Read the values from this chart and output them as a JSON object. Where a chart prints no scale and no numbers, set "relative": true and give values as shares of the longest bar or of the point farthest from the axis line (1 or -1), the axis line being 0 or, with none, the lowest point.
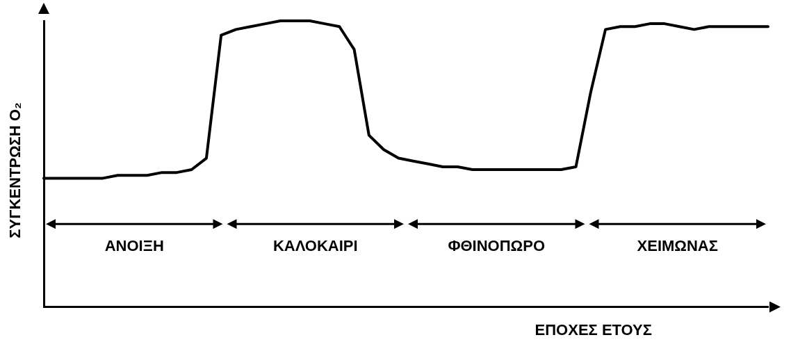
{
  "chart_data": {
    "type": "line",
    "relative": true,
    "xlabel": "ΕΠΟΧΕΣ ΕΤΟΥΣ",
    "ylabel": "ΣΥΓΚΕΝΤΡΩΣΗ O₂",
    "grid": false,
    "legend": false,
    "marker": "none",
    "line_style": "solid",
    "categories": [
      null,
      null,
      null,
      null,
      null,
      null,
      null,
      null,
      null,
      null,
      null,
      null,
      null,
      null,
      null,
      null,
      null,
      null,
      null,
      null,
      null,
      null,
      null,
      null,
      null,
      null,
      null,
      null,
      null,
      null,
      null,
      null,
      null,
      null,
      null,
      null,
      null,
      null,
      null,
      null,
      null,
      null,
      null,
      null,
      null,
      null,
      null,
      null,
      null,
      null
    ],
    "series": [
      {
        "color": "#000000",
        "values": [
          0.45,
          0.45,
          0.45,
          0.45,
          0.45,
          0.46,
          0.46,
          0.46,
          0.47,
          0.47,
          0.48,
          0.52,
          0.95,
          0.97,
          0.98,
          0.99,
          1.0,
          1.0,
          1.0,
          0.99,
          0.98,
          0.9,
          0.6,
          0.55,
          0.52,
          0.51,
          0.5,
          0.49,
          0.49,
          0.48,
          0.48,
          0.48,
          0.48,
          0.48,
          0.48,
          0.48,
          0.49,
          0.75,
          0.97,
          0.98,
          0.98,
          0.99,
          0.99,
          0.98,
          0.97,
          0.98,
          0.98,
          0.98,
          0.98,
          0.98
        ]
      }
    ],
    "annotations": [
      "ΑΝΟΙΞΗ",
      "ΚΑΛΟΚΑΙΡΙ",
      "ΦΘΙΝΟΠΩΡΟ",
      "ΧΕΙΜΩΝΑΣ"
    ]
  }
}
